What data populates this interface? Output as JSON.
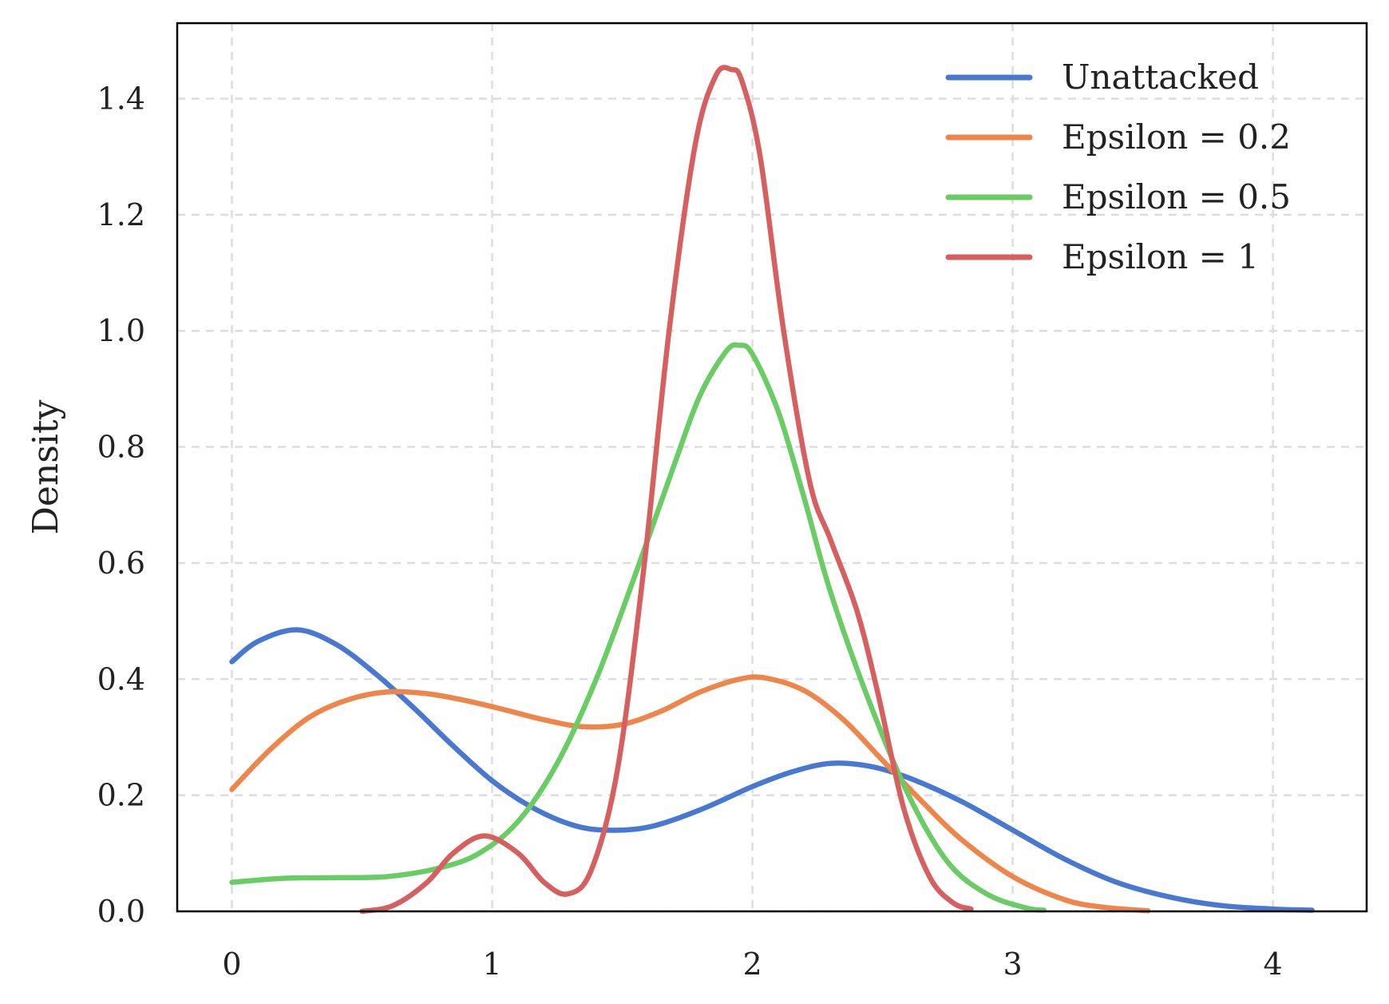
{
  "chart_data": {
    "type": "line",
    "title": "",
    "xlabel": "",
    "ylabel": "Density",
    "xlim": [
      -0.21,
      4.36
    ],
    "ylim": [
      0.0,
      1.53
    ],
    "xticks": [
      0,
      1,
      2,
      3,
      4
    ],
    "yticks": [
      0.0,
      0.2,
      0.4,
      0.6,
      0.8,
      1.0,
      1.2,
      1.4
    ],
    "xtick_labels": [
      "0",
      "1",
      "2",
      "3",
      "4"
    ],
    "ytick_labels": [
      "0.0",
      "0.2",
      "0.4",
      "0.6",
      "0.8",
      "1.0",
      "1.2",
      "1.4"
    ],
    "grid": true,
    "legend_position": "top-right",
    "series": [
      {
        "name": "Unattacked",
        "color": "#4878d0",
        "x": [
          0.0,
          0.1,
          0.25,
          0.4,
          0.55,
          0.7,
          0.85,
          1.0,
          1.15,
          1.3,
          1.43,
          1.6,
          1.8,
          2.0,
          2.15,
          2.3,
          2.45,
          2.6,
          2.8,
          3.0,
          3.2,
          3.4,
          3.6,
          3.8,
          4.0,
          4.15
        ],
        "y": [
          0.43,
          0.465,
          0.485,
          0.46,
          0.41,
          0.35,
          0.285,
          0.225,
          0.18,
          0.15,
          0.14,
          0.145,
          0.175,
          0.215,
          0.24,
          0.255,
          0.25,
          0.23,
          0.19,
          0.14,
          0.09,
          0.05,
          0.025,
          0.01,
          0.004,
          0.002
        ]
      },
      {
        "name": "Epsilon = 0.2",
        "color": "#ee854a",
        "x": [
          0.0,
          0.15,
          0.3,
          0.45,
          0.6,
          0.75,
          0.9,
          1.05,
          1.2,
          1.35,
          1.5,
          1.65,
          1.8,
          1.95,
          2.05,
          2.2,
          2.35,
          2.5,
          2.65,
          2.8,
          3.0,
          3.2,
          3.35,
          3.52
        ],
        "y": [
          0.21,
          0.28,
          0.335,
          0.365,
          0.378,
          0.375,
          0.363,
          0.347,
          0.33,
          0.318,
          0.322,
          0.345,
          0.378,
          0.4,
          0.402,
          0.38,
          0.33,
          0.26,
          0.19,
          0.125,
          0.06,
          0.02,
          0.007,
          0.001
        ]
      },
      {
        "name": "Epsilon = 0.5",
        "color": "#6acc64",
        "x": [
          0.0,
          0.2,
          0.4,
          0.6,
          0.8,
          0.95,
          1.1,
          1.25,
          1.4,
          1.55,
          1.7,
          1.8,
          1.9,
          1.95,
          2.0,
          2.1,
          2.2,
          2.3,
          2.45,
          2.6,
          2.75,
          2.9,
          3.05,
          3.12
        ],
        "y": [
          0.05,
          0.057,
          0.058,
          0.06,
          0.075,
          0.1,
          0.155,
          0.255,
          0.4,
          0.58,
          0.77,
          0.89,
          0.965,
          0.975,
          0.96,
          0.86,
          0.71,
          0.55,
          0.36,
          0.2,
          0.085,
          0.03,
          0.006,
          0.002
        ]
      },
      {
        "name": "Epsilon = 1",
        "color": "#d65f5f",
        "x": [
          0.5,
          0.62,
          0.75,
          0.85,
          0.97,
          1.1,
          1.2,
          1.29,
          1.38,
          1.48,
          1.58,
          1.68,
          1.78,
          1.86,
          1.92,
          1.96,
          2.03,
          2.12,
          2.22,
          2.3,
          2.4,
          2.48,
          2.58,
          2.68,
          2.77,
          2.84
        ],
        "y": [
          0.0,
          0.01,
          0.05,
          0.1,
          0.13,
          0.1,
          0.05,
          0.03,
          0.07,
          0.24,
          0.58,
          1.0,
          1.32,
          1.44,
          1.45,
          1.43,
          1.3,
          1.0,
          0.74,
          0.64,
          0.52,
          0.38,
          0.18,
          0.06,
          0.015,
          0.004
        ]
      }
    ]
  }
}
